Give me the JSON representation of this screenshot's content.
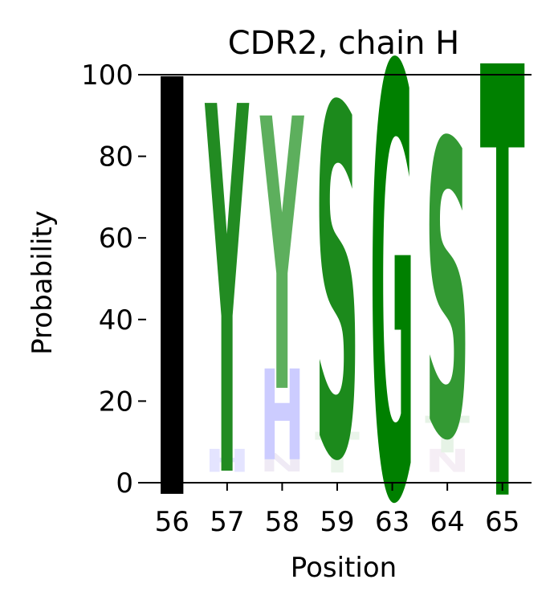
{
  "chart_data": {
    "type": "sequence-logo",
    "title": "CDR2, chain H",
    "xlabel": "Position",
    "ylabel": "Probability",
    "ylim": [
      0,
      100
    ],
    "yticks": [
      0,
      20,
      40,
      60,
      80,
      100
    ],
    "positions": [
      "56",
      "57",
      "58",
      "59",
      "63",
      "64",
      "65"
    ],
    "stacks": [
      {
        "position": "56",
        "letters": [
          {
            "letter": "I",
            "prob": 92,
            "color": "#000000"
          }
        ]
      },
      {
        "position": "57",
        "letters": [
          {
            "letter": "H",
            "prob": 5,
            "color": "#e4e4ff"
          },
          {
            "letter": "Y",
            "prob": 81,
            "color": "#228b22"
          }
        ]
      },
      {
        "position": "58",
        "letters": [
          {
            "letter": "N",
            "prob": 4,
            "color": "#efeaf5"
          },
          {
            "letter": "H",
            "prob": 20,
            "color": "#ccccff"
          },
          {
            "letter": "Y",
            "prob": 60,
            "color": "#5daf5d"
          }
        ]
      },
      {
        "position": "59",
        "letters": [
          {
            "letter": "T",
            "prob": 9,
            "color": "#eaf5ea"
          },
          {
            "letter": "S",
            "prob": 77,
            "color": "#1c8a1c"
          }
        ]
      },
      {
        "position": "63",
        "letters": [
          {
            "letter": "G",
            "prob": 95,
            "color": "#008000"
          }
        ]
      },
      {
        "position": "64",
        "letters": [
          {
            "letter": "N",
            "prob": 5,
            "color": "#f5eef5"
          },
          {
            "letter": "T",
            "prob": 8,
            "color": "#e6f3e6"
          },
          {
            "letter": "S",
            "prob": 65,
            "color": "#339933"
          }
        ]
      },
      {
        "position": "65",
        "letters": [
          {
            "letter": "T",
            "prob": 95,
            "color": "#008000"
          }
        ]
      }
    ]
  }
}
